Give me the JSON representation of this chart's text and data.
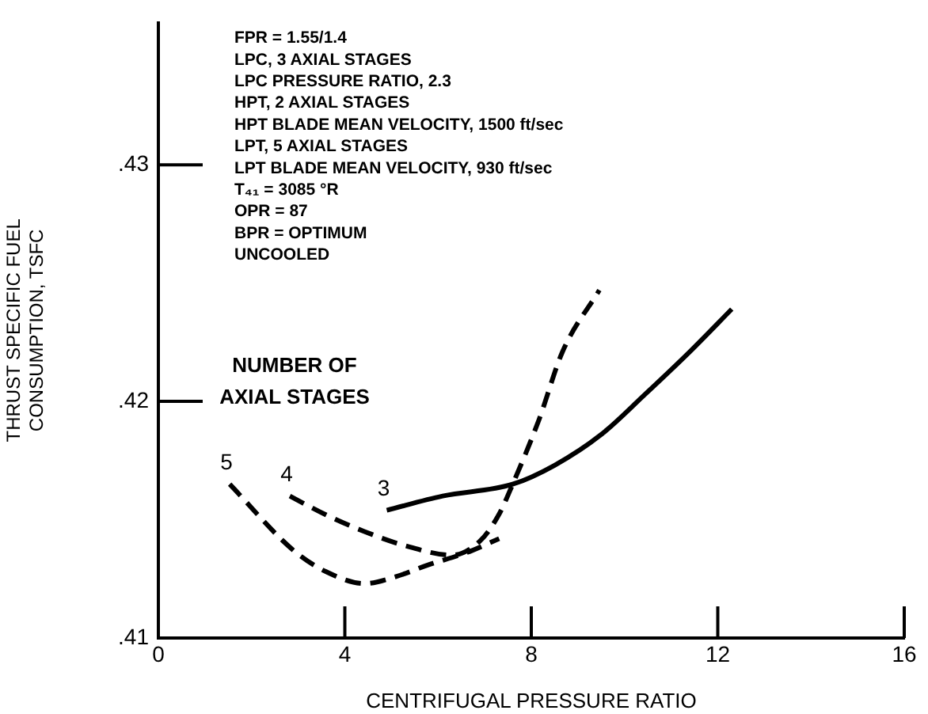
{
  "chart_data": {
    "type": "line",
    "xlabel": "CENTRIFUGAL PRESSURE RATIO",
    "ylabel": "THRUST SPECIFIC FUEL\nCONSUMPTION, TSFC",
    "xlim": [
      0,
      16
    ],
    "xticks": [
      0,
      4,
      8,
      12,
      16
    ],
    "ylim": [
      0.41,
      0.436
    ],
    "yticks": [
      {
        "value": 0.41,
        "label": ".41"
      },
      {
        "value": 0.42,
        "label": ".42"
      },
      {
        "value": 0.43,
        "label": ".43"
      }
    ],
    "grid": false,
    "legend": false,
    "marker": "none",
    "annotations": [
      "FPR = 1.55/1.4",
      "LPC, 3 AXIAL STAGES",
      "LPC PRESSURE RATIO, 2.3",
      "HPT, 2 AXIAL STAGES",
      "HPT BLADE MEAN VELOCITY, 1500 ft/sec",
      "LPT, 5 AXIAL STAGES",
      "LPT BLADE MEAN VELOCITY, 930 ft/sec",
      "T₄₁ = 3085 °R",
      "OPR = 87",
      "BPR = OPTIMUM",
      "UNCOOLED",
      "NUMBER OF AXIAL STAGES"
    ],
    "series": [
      {
        "name": "5",
        "color": "#000000",
        "line_style": "dashed",
        "x": [
          1.53,
          2.9,
          3.6,
          4.42,
          5.1,
          5.8,
          6.6,
          7.31
        ],
        "values": [
          0.4165,
          0.4137,
          0.4128,
          0.4123,
          0.4126,
          0.4131,
          0.4136,
          0.4142
        ]
      },
      {
        "name": "4",
        "color": "#000000",
        "line_style": "dashed",
        "x": [
          2.82,
          3.6,
          4.42,
          5.3,
          6.3,
          6.9,
          7.3,
          7.6,
          8.16,
          8.67,
          9.46
        ],
        "values": [
          0.416,
          0.4152,
          0.4145,
          0.4139,
          0.4135,
          0.4141,
          0.4152,
          0.4165,
          0.4192,
          0.4221,
          0.4247
        ]
      },
      {
        "name": "3",
        "color": "#000000",
        "line_style": "solid",
        "x": [
          4.9,
          6.1,
          7.6,
          8.5,
          9.5,
          10.44,
          11.4,
          12.3
        ],
        "values": [
          0.4154,
          0.416,
          0.4165,
          0.4173,
          0.4186,
          0.4203,
          0.4221,
          0.4239
        ]
      }
    ]
  }
}
